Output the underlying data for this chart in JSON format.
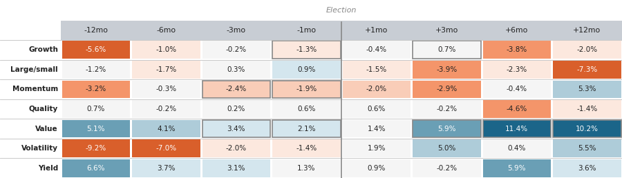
{
  "rows": [
    "Growth",
    "Large/small",
    "Momentum",
    "Quality",
    "Value",
    "Volatility",
    "Yield"
  ],
  "cols": [
    "-12mo",
    "-6mo",
    "-3mo",
    "-1mo",
    "+1mo",
    "+3mo",
    "+6mo",
    "+12mo"
  ],
  "values": [
    [
      -5.6,
      -1.0,
      -0.2,
      -1.3,
      -0.4,
      0.7,
      -3.8,
      -2.0
    ],
    [
      -1.2,
      -1.7,
      0.3,
      0.9,
      -1.5,
      -3.9,
      -2.3,
      -7.3
    ],
    [
      -3.2,
      -0.3,
      -2.4,
      -1.9,
      -2.0,
      -2.9,
      -0.4,
      5.3
    ],
    [
      0.7,
      -0.2,
      0.2,
      0.6,
      0.6,
      -0.2,
      -4.6,
      -1.4
    ],
    [
      5.1,
      4.1,
      3.4,
      2.1,
      1.4,
      5.9,
      11.4,
      10.2
    ],
    [
      -9.2,
      -7.0,
      -2.0,
      -1.4,
      1.9,
      5.0,
      0.4,
      5.5
    ],
    [
      6.6,
      3.7,
      3.1,
      1.3,
      0.9,
      -0.2,
      5.9,
      3.6
    ]
  ],
  "label_texts": [
    [
      "-5.6%",
      "-1.0%",
      "-0.2%",
      "-1.3%",
      "-0.4%",
      "0.7%",
      "-3.8%",
      "-2.0%"
    ],
    [
      "-1.2%",
      "-1.7%",
      "0.3%",
      "0.9%",
      "-1.5%",
      "-3.9%",
      "-2.3%",
      "-7.3%"
    ],
    [
      "-3.2%",
      "-0.3%",
      "-2.4%",
      "-1.9%",
      "-2.0%",
      "-2.9%",
      "-0.4%",
      "5.3%"
    ],
    [
      "0.7%",
      "-0.2%",
      "0.2%",
      "0.6%",
      "0.6%",
      "-0.2%",
      "-4.6%",
      "-1.4%"
    ],
    [
      "5.1%",
      "4.1%",
      "3.4%",
      "2.1%",
      "1.4%",
      "5.9%",
      "11.4%",
      "10.2%"
    ],
    [
      "-9.2%",
      "-7.0%",
      "-2.0%",
      "-1.4%",
      "1.9%",
      "5.0%",
      "0.4%",
      "5.5%"
    ],
    [
      "6.6%",
      "3.7%",
      "3.1%",
      "1.3%",
      "0.9%",
      "-0.2%",
      "5.9%",
      "3.6%"
    ]
  ],
  "election_col_idx": 4,
  "bg_color": "#ffffff",
  "header_bg": "#c8cdd4",
  "orange_strong": "#d95f2b",
  "orange_mid": "#f4956a",
  "orange_light": "#f9cdb8",
  "orange_vlight": "#fce8de",
  "blue_strong": "#1b6589",
  "blue_mid": "#6a9fb5",
  "blue_light": "#aeccd9",
  "blue_vlight": "#d4e6ee",
  "neutral": "#f5f5f5",
  "election_line_color": "#888888",
  "text_dark": "#222222",
  "text_white": "#ffffff",
  "election_label_color": "#888888",
  "cell_colors": [
    [
      "orange_strong",
      "orange_vlight",
      "neutral",
      "orange_vlight",
      "neutral",
      "neutral",
      "orange_mid",
      "orange_vlight"
    ],
    [
      "neutral",
      "orange_vlight",
      "neutral",
      "blue_vlight",
      "orange_vlight",
      "orange_mid",
      "orange_vlight",
      "orange_strong"
    ],
    [
      "orange_mid",
      "neutral",
      "orange_light",
      "orange_light",
      "orange_light",
      "orange_mid",
      "neutral",
      "blue_light"
    ],
    [
      "neutral",
      "neutral",
      "neutral",
      "neutral",
      "neutral",
      "neutral",
      "orange_mid",
      "orange_vlight"
    ],
    [
      "blue_mid",
      "blue_light",
      "blue_vlight",
      "blue_vlight",
      "neutral",
      "blue_mid",
      "blue_strong",
      "blue_strong"
    ],
    [
      "orange_strong",
      "orange_strong",
      "orange_vlight",
      "orange_vlight",
      "neutral",
      "blue_light",
      "neutral",
      "blue_light"
    ],
    [
      "blue_mid",
      "blue_vlight",
      "blue_vlight",
      "neutral",
      "neutral",
      "neutral",
      "blue_mid",
      "blue_vlight"
    ]
  ],
  "text_colors": [
    [
      "text_white",
      "text_dark",
      "text_dark",
      "text_dark",
      "text_dark",
      "text_dark",
      "text_dark",
      "text_dark"
    ],
    [
      "text_dark",
      "text_dark",
      "text_dark",
      "text_dark",
      "text_dark",
      "text_dark",
      "text_dark",
      "text_white"
    ],
    [
      "text_dark",
      "text_dark",
      "text_dark",
      "text_dark",
      "text_dark",
      "text_dark",
      "text_dark",
      "text_dark"
    ],
    [
      "text_dark",
      "text_dark",
      "text_dark",
      "text_dark",
      "text_dark",
      "text_dark",
      "text_dark",
      "text_dark"
    ],
    [
      "text_white",
      "text_dark",
      "text_dark",
      "text_dark",
      "text_dark",
      "text_white",
      "text_white",
      "text_white"
    ],
    [
      "text_white",
      "text_white",
      "text_dark",
      "text_dark",
      "text_dark",
      "text_dark",
      "text_dark",
      "text_dark"
    ],
    [
      "text_white",
      "text_dark",
      "text_dark",
      "text_dark",
      "text_dark",
      "text_dark",
      "text_white",
      "text_dark"
    ]
  ]
}
